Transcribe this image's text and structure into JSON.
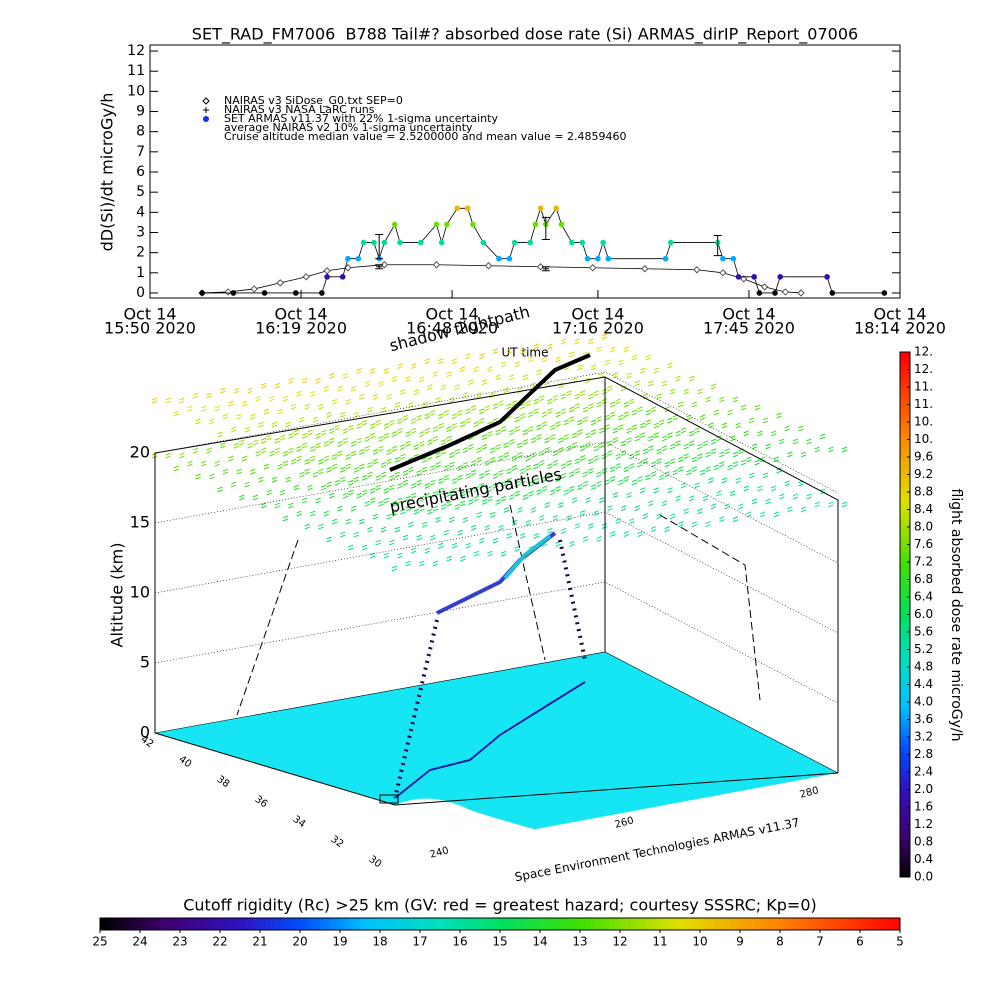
{
  "chart_data": [
    {
      "type": "timeline",
      "title": "SET_RAD_FM7006  B788 Tail#? absorbed dose rate (Si) ARMAS_dirIP_Report_07006",
      "ylabel": "dD(Si)/dt microGy/h",
      "xlabel": "UT time",
      "xlim": [
        "2020-10-14T15:50",
        "2020-10-14T18:14"
      ],
      "xticks": [
        {
          "value": "2020-10-14T15:50",
          "label": [
            "Oct 14",
            "15:50 2020"
          ]
        },
        {
          "value": "2020-10-14T16:19",
          "label": [
            "Oct 14",
            "16:19 2020"
          ]
        },
        {
          "value": "2020-10-14T16:48",
          "label": [
            "Oct 14",
            "16:48 2020"
          ]
        },
        {
          "value": "2020-10-14T17:16",
          "label": [
            "Oct 14",
            "17:16 2020"
          ]
        },
        {
          "value": "2020-10-14T17:45",
          "label": [
            "Oct 14",
            "17:45 2020"
          ]
        },
        {
          "value": "2020-10-14T18:14",
          "label": [
            "Oct 14",
            "18:14 2020"
          ]
        }
      ],
      "ylim": [
        -0.25,
        12.3
      ],
      "yticks": [
        0,
        1,
        2,
        3,
        4,
        5,
        6,
        7,
        8,
        9,
        10,
        11,
        12
      ],
      "series": [
        {
          "name": "NAIRAS v3 SiDose_G0.txt SEP=0",
          "marker": "diamond",
          "color": "#000000",
          "x": [
            "2020-10-14T16:00",
            "2020-10-14T16:05",
            "2020-10-14T16:10",
            "2020-10-14T16:15",
            "2020-10-14T16:20",
            "2020-10-14T16:24",
            "2020-10-14T16:28",
            "2020-10-14T16:35",
            "2020-10-14T16:45",
            "2020-10-14T16:55",
            "2020-10-14T17:05",
            "2020-10-14T17:15",
            "2020-10-14T17:25",
            "2020-10-14T17:35",
            "2020-10-14T17:40",
            "2020-10-14T17:44",
            "2020-10-14T17:48",
            "2020-10-14T17:52",
            "2020-10-14T17:55"
          ],
          "values": [
            0,
            0.05,
            0.2,
            0.5,
            0.8,
            1.1,
            1.25,
            1.4,
            1.4,
            1.35,
            1.3,
            1.25,
            1.2,
            1.15,
            1.0,
            0.7,
            0.3,
            0.05,
            0
          ]
        },
        {
          "name": "NAIRAS v3 NASA LaRC runs",
          "marker": "plus",
          "color": "#000000",
          "x": [
            "2020-10-14T16:34",
            "2020-10-14T17:06"
          ],
          "values": [
            1.3,
            1.2
          ],
          "errors": [
            0.1,
            0.1
          ]
        },
        {
          "name": "SET ARMAS v11.37 with 22% 1-sigma uncertainty",
          "marker": "dot",
          "color": "#1030e0",
          "x": [
            "2020-10-14T16:00",
            "2020-10-14T16:06",
            "2020-10-14T16:12",
            "2020-10-14T16:18",
            "2020-10-14T16:23",
            "2020-10-14T16:24",
            "2020-10-14T16:27",
            "2020-10-14T16:28",
            "2020-10-14T16:30",
            "2020-10-14T16:31",
            "2020-10-14T16:33",
            "2020-10-14T16:34",
            "2020-10-14T16:35",
            "2020-10-14T16:37",
            "2020-10-14T16:38",
            "2020-10-14T16:42",
            "2020-10-14T16:45",
            "2020-10-14T16:46",
            "2020-10-14T16:47",
            "2020-10-14T16:49",
            "2020-10-14T16:51",
            "2020-10-14T16:52",
            "2020-10-14T16:54",
            "2020-10-14T16:57",
            "2020-10-14T16:59",
            "2020-10-14T17:00",
            "2020-10-14T17:03",
            "2020-10-14T17:04",
            "2020-10-14T17:05",
            "2020-10-14T17:06",
            "2020-10-14T17:08",
            "2020-10-14T17:09",
            "2020-10-14T17:11",
            "2020-10-14T17:13",
            "2020-10-14T17:14",
            "2020-10-14T17:16",
            "2020-10-14T17:17",
            "2020-10-14T17:18",
            "2020-10-14T17:29",
            "2020-10-14T17:30",
            "2020-10-14T17:39",
            "2020-10-14T17:40",
            "2020-10-14T17:42",
            "2020-10-14T17:43",
            "2020-10-14T17:46",
            "2020-10-14T17:47",
            "2020-10-14T17:50",
            "2020-10-14T17:51",
            "2020-10-14T18:00",
            "2020-10-14T18:01",
            "2020-10-14T18:11"
          ],
          "values": [
            0,
            0,
            0,
            0,
            0,
            0.8,
            0.8,
            1.7,
            1.7,
            2.5,
            2.5,
            1.7,
            2.5,
            3.4,
            2.5,
            2.5,
            3.4,
            2.5,
            3.4,
            4.2,
            4.2,
            3.4,
            2.5,
            1.7,
            1.7,
            2.5,
            2.5,
            3.4,
            4.2,
            3.4,
            4.2,
            3.4,
            2.5,
            2.5,
            1.7,
            1.7,
            2.5,
            1.7,
            1.7,
            2.5,
            2.5,
            1.7,
            1.7,
            0.8,
            0.8,
            0,
            0,
            0.8,
            0.8,
            0,
            0
          ]
        },
        {
          "name": "average NAIRAS v2 10% 1-sigma uncertainty",
          "marker": "errorbar",
          "color": "#000000",
          "x": [
            "2020-10-14T16:34",
            "2020-10-14T17:06",
            "2020-10-14T17:39"
          ],
          "values": [
            2.3,
            3.2,
            2.35
          ],
          "errors": [
            0.6,
            0.55,
            0.5
          ]
        }
      ],
      "note": "Cruise altitude median value = 2.5200000 and mean value = 2.4859460"
    },
    {
      "type": "surface3d",
      "annotations": [
        "shadow flightpath",
        "precipitating particles"
      ],
      "zlabel": "Altitude (km)",
      "zlim": [
        0,
        20
      ],
      "zticks": [
        0,
        5,
        10,
        15,
        20
      ],
      "lat_ticks": [
        42,
        40,
        38,
        36,
        34,
        32,
        30
      ],
      "lon_ticks": [
        240,
        260,
        280
      ],
      "caption": "Space Environment Technologies ARMAS v11.37"
    },
    {
      "type": "colorbar-vertical",
      "label": "flight absorbed dose rate microGy/h",
      "lim": [
        0,
        12
      ],
      "ticks": [
        {
          "value": 0,
          "label": "0.0"
        },
        0.4,
        0.8,
        1.2,
        1.6,
        {
          "value": 2,
          "label": "2.0"
        },
        2.4,
        2.8,
        3.2,
        3.6,
        {
          "value": 4,
          "label": "4.0"
        },
        4.4,
        4.8,
        5.2,
        5.6,
        {
          "value": 6,
          "label": "6.0"
        },
        6.4,
        6.8,
        7.2,
        7.6,
        {
          "value": 8,
          "label": "8.0"
        },
        8.4,
        8.8,
        9.2,
        9.6,
        {
          "value": 10,
          "label": "10."
        },
        {
          "value": 10.4,
          "label": "10."
        },
        {
          "value": 10.8,
          "label": "11."
        },
        {
          "value": 11.2,
          "label": "11."
        },
        {
          "value": 11.6,
          "label": "12."
        },
        {
          "value": 12,
          "label": "12."
        }
      ]
    },
    {
      "type": "colorbar-horizontal",
      "title": "Cutoff rigidity (Rc) >25 km (GV: red = greatest hazard; courtesy SSSRC; Kp=0)",
      "lim": [
        25,
        5
      ],
      "ticks": [
        25,
        24,
        23,
        22,
        21,
        20,
        19,
        18,
        17,
        16,
        15,
        14,
        13,
        12,
        11,
        10,
        9,
        8,
        7,
        6,
        5
      ]
    }
  ]
}
